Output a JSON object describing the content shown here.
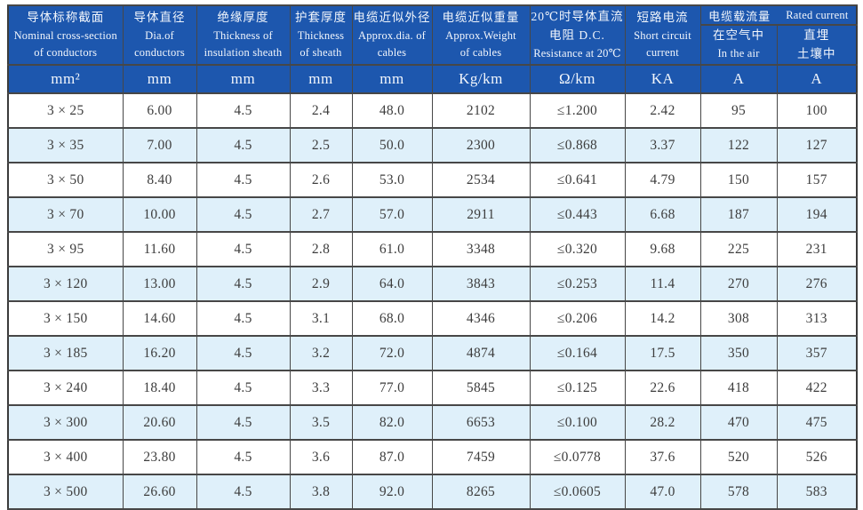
{
  "page": {
    "background": "#ffffff"
  },
  "table": {
    "accent_color": "#1d57ae",
    "alt_row_color": "#dff0fa",
    "border_color": "#474747",
    "header": {
      "cols": [
        {
          "zh": "导体标称截面",
          "en1": "Nominal cross-section",
          "en2": "of conductors"
        },
        {
          "zh": "导体直径",
          "en1": "Dia.of",
          "en2": "conductors"
        },
        {
          "zh": "绝缘厚度",
          "en1": "Thickness of",
          "en2": "insulation sheath"
        },
        {
          "zh": "护套厚度",
          "en1": "Thickness",
          "en2": "of sheath"
        },
        {
          "zh": "电缆近似外径",
          "en1": "Approx.dia. of",
          "en2": "cables"
        },
        {
          "zh": "电缆近似重量",
          "en1": "Approx.Weight",
          "en2": "of cables"
        },
        {
          "zh": "20℃时导体直流",
          "en1": "电阻 D.C.",
          "en2": "Resistance at 20℃"
        },
        {
          "zh": "短路电流",
          "en1": "Short circuit",
          "en2": "current"
        }
      ],
      "rated": {
        "zh": "电缆载流量",
        "en": "Rated current",
        "sub": [
          {
            "line1": "在空气中",
            "line2": "In the air"
          },
          {
            "line1": "直埋",
            "line2": "土壤中"
          }
        ]
      },
      "units": [
        "mm²",
        "mm",
        "mm",
        "mm",
        "mm",
        "Kg/km",
        "Ω/km",
        "KA",
        "A",
        "A"
      ]
    },
    "rows": [
      [
        "3 × 25",
        "6.00",
        "4.5",
        "2.4",
        "48.0",
        "2102",
        "≤1.200",
        "2.42",
        "95",
        "100"
      ],
      [
        "3 × 35",
        "7.00",
        "4.5",
        "2.5",
        "50.0",
        "2300",
        "≤0.868",
        "3.37",
        "122",
        "127"
      ],
      [
        "3 × 50",
        "8.40",
        "4.5",
        "2.6",
        "53.0",
        "2534",
        "≤0.641",
        "4.79",
        "150",
        "157"
      ],
      [
        "3 × 70",
        "10.00",
        "4.5",
        "2.7",
        "57.0",
        "2911",
        "≤0.443",
        "6.68",
        "187",
        "194"
      ],
      [
        "3 × 95",
        "11.60",
        "4.5",
        "2.8",
        "61.0",
        "3348",
        "≤0.320",
        "9.68",
        "225",
        "231"
      ],
      [
        "3 × 120",
        "13.00",
        "4.5",
        "2.9",
        "64.0",
        "3843",
        "≤0.253",
        "11.4",
        "270",
        "276"
      ],
      [
        "3 × 150",
        "14.60",
        "4.5",
        "3.1",
        "68.0",
        "4346",
        "≤0.206",
        "14.2",
        "308",
        "313"
      ],
      [
        "3 × 185",
        "16.20",
        "4.5",
        "3.2",
        "72.0",
        "4874",
        "≤0.164",
        "17.5",
        "350",
        "357"
      ],
      [
        "3 × 240",
        "18.40",
        "4.5",
        "3.3",
        "77.0",
        "5845",
        "≤0.125",
        "22.6",
        "418",
        "422"
      ],
      [
        "3 × 300",
        "20.60",
        "4.5",
        "3.5",
        "82.0",
        "6653",
        "≤0.100",
        "28.2",
        "470",
        "475"
      ],
      [
        "3 × 400",
        "23.80",
        "4.5",
        "3.6",
        "87.0",
        "7459",
        "≤0.0778",
        "37.6",
        "520",
        "526"
      ],
      [
        "3 × 500",
        "26.60",
        "4.5",
        "3.8",
        "92.0",
        "8265",
        "≤0.0605",
        "47.0",
        "578",
        "583"
      ]
    ]
  }
}
